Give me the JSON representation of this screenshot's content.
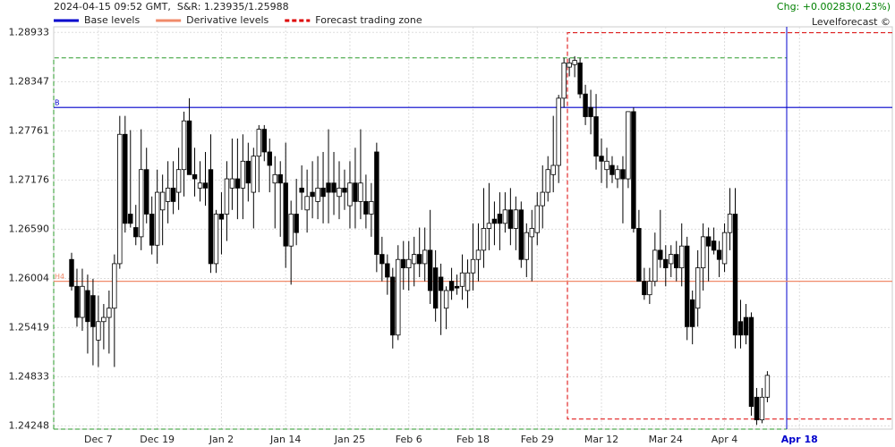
{
  "chart_data": {
    "type": "candlestick",
    "title": "2024-04-15 09:52 GMT,  S&R: 1.23935/1.25988",
    "change": "Chg: +0.00283(0.23%)",
    "source": "Levelforecast ©",
    "legend": [
      {
        "name": "Base levels",
        "color": "#0000cc",
        "style": "solid"
      },
      {
        "name": "Derivative levels",
        "color": "#f08a6a",
        "style": "solid"
      },
      {
        "name": "Forecast trading zone",
        "color": "#dd0000",
        "style": "dashed"
      }
    ],
    "base_levels": [
      {
        "label": "B",
        "value": 1.2804
      }
    ],
    "derivative_levels": [
      {
        "label": "H4",
        "value": 1.2597
      }
    ],
    "forecast_zone": {
      "high": 1.2893,
      "low": 1.2433
    },
    "range_zone": {
      "high": 1.2863,
      "low": 1.2421
    },
    "ylim": [
      1.2421,
      1.29
    ],
    "yticks": [
      1.24248,
      1.24833,
      1.25419,
      1.26004,
      {
        "value": 1.2659,
        "label": "1.26590"
      },
      1.27176,
      1.27761,
      1.28347,
      1.28933
    ],
    "grid": true,
    "up_color": "#ffffff",
    "down_color": "#000000",
    "categories": [
      null,
      null,
      null,
      null,
      null,
      "Dec 7",
      null,
      null,
      null,
      null,
      null,
      null,
      null,
      null,
      null,
      null,
      "Dec 19",
      null,
      null,
      null,
      null,
      null,
      null,
      null,
      null,
      null,
      null,
      null,
      "Jan 2",
      null,
      null,
      null,
      null,
      null,
      null,
      null,
      null,
      null,
      null,
      null,
      "Jan 14",
      null,
      null,
      null,
      null,
      null,
      null,
      null,
      null,
      null,
      null,
      null,
      "Jan 25",
      null,
      null,
      null,
      null,
      null,
      null,
      null,
      null,
      null,
      null,
      "Feb 6",
      null,
      null,
      null,
      null,
      null,
      null,
      null,
      null,
      null,
      null,
      null,
      "Feb 18",
      null,
      null,
      null,
      null,
      null,
      null,
      null,
      null,
      null,
      null,
      null,
      "Feb 29",
      null,
      null,
      null,
      null,
      null,
      null,
      null,
      null,
      null,
      null,
      null,
      "Mar 12",
      null,
      null,
      null,
      null,
      null,
      null,
      null,
      null,
      null,
      null,
      null,
      "Mar 24",
      null,
      null,
      null,
      null,
      null,
      null,
      null,
      null,
      null,
      null,
      "Apr 4",
      null,
      null,
      null,
      null,
      null,
      null,
      null,
      null,
      null,
      null,
      null,
      null,
      null,
      "Apr 18"
    ],
    "open": [
      1.2623,
      1.2591,
      1.2554,
      1.2586,
      1.258,
      1.2527,
      1.2549,
      1.2554,
      1.2565,
      1.2618,
      1.2772,
      1.2677,
      1.2661,
      1.265,
      1.273,
      1.2677,
      1.264,
      1.2682,
      1.2692,
      1.2708,
      1.2703,
      1.273,
      1.2788,
      1.2724,
      1.2708,
      1.2714,
      1.273,
      1.2618,
      1.2677,
      1.2677,
      1.2708,
      1.2719,
      1.2708,
      1.274,
      1.2703,
      1.2746,
      1.2778,
      1.2751,
      1.2714,
      1.2724,
      1.2714,
      1.2639,
      1.2677,
      1.2708,
      1.2682,
      1.2703,
      1.2692,
      1.2708,
      1.2714,
      1.2714,
      1.2698,
      1.2708,
      1.2687,
      1.2714,
      1.2692,
      1.2692,
      1.2677,
      1.2751,
      1.2629,
      1.2618,
      1.2602,
      1.2533,
      1.2623,
      1.2613,
      1.2618,
      1.2629,
      1.2618,
      1.2634,
      1.2613,
      1.2602,
      1.2565,
      1.2597,
      1.2591,
      1.2591,
      1.2586,
      1.2607,
      1.2623,
      1.2634,
      1.266,
      1.2671,
      1.2677,
      1.2666,
      1.2682,
      1.266,
      1.2682,
      1.2623,
      1.265,
      1.2655,
      1.2687,
      1.2703,
      1.2724,
      1.2735,
      1.2815,
      1.2852,
      1.2855,
      1.2857,
      1.282,
      1.2804,
      1.2793,
      1.2746,
      1.273,
      1.2735,
      1.2719,
      1.273,
      1.2719,
      1.2799,
      1.266,
      1.2597,
      1.2581,
      1.2597,
      1.2634,
      1.2623,
      1.2618,
      1.2629,
      1.2613,
      1.2639,
      1.2575,
      1.2565,
      1.2613,
      1.265,
      1.2645,
      1.2634,
      1.2618,
      1.2655,
      1.2677,
      1.2549,
      1.2554,
      1.2554,
      1.2459,
      1.2432,
      1.2459,
      null,
      null,
      null,
      null,
      null,
      null
    ],
    "high": [
      1.2631,
      1.2612,
      1.2612,
      1.2605,
      1.26,
      1.258,
      1.257,
      1.2586,
      1.2629,
      1.2794,
      1.2794,
      1.2777,
      1.2688,
      1.2778,
      1.2756,
      1.2698,
      1.273,
      1.2724,
      1.274,
      1.274,
      1.2756,
      1.2799,
      1.2815,
      1.2756,
      1.274,
      1.2751,
      1.2772,
      1.2682,
      1.2703,
      1.274,
      1.2767,
      1.2767,
      1.2772,
      1.2762,
      1.2756,
      1.2783,
      1.2783,
      1.2767,
      1.2746,
      1.274,
      1.2762,
      1.2693,
      1.2719,
      1.2735,
      1.273,
      1.274,
      1.2746,
      1.2751,
      1.2778,
      1.2751,
      1.274,
      1.273,
      1.274,
      1.2756,
      1.2778,
      1.2724,
      1.2714,
      1.2762,
      1.265,
      1.2629,
      1.2613,
      1.264,
      1.2645,
      1.2645,
      1.265,
      1.2661,
      1.2661,
      1.2682,
      1.2634,
      1.2618,
      1.2591,
      1.2613,
      1.2605,
      1.2629,
      1.2623,
      1.2666,
      1.2666,
      1.2708,
      1.2714,
      1.2692,
      1.2703,
      1.2703,
      1.2708,
      1.2698,
      1.2692,
      1.2666,
      1.2682,
      1.2703,
      1.2735,
      1.2746,
      1.2794,
      1.2819,
      1.2863,
      1.2863,
      1.2865,
      1.2863,
      1.2831,
      1.2825,
      1.282,
      1.2767,
      1.2756,
      1.2746,
      1.2735,
      1.2746,
      1.2799,
      1.2804,
      1.2682,
      1.2613,
      1.2613,
      1.2655,
      1.2682,
      1.264,
      1.264,
      1.2645,
      1.2666,
      1.265,
      1.2586,
      1.2634,
      1.2666,
      1.2661,
      1.2661,
      1.2645,
      1.2666,
      1.2708,
      1.2708,
      1.2575,
      1.257,
      1.256,
      1.247,
      1.247,
      1.249,
      null,
      null,
      null,
      null,
      null,
      null
    ],
    "low": [
      1.2586,
      1.2543,
      1.2538,
      1.2511,
      1.2497,
      1.2495,
      1.2516,
      1.2511,
      1.2495,
      1.2612,
      1.2655,
      1.2661,
      1.264,
      1.2634,
      1.2666,
      1.2629,
      1.2618,
      1.264,
      1.2666,
      1.2677,
      1.2682,
      1.2698,
      1.2724,
      1.2698,
      1.2692,
      1.2687,
      1.2607,
      1.2607,
      1.2629,
      1.2645,
      1.2682,
      1.2671,
      1.2671,
      1.2692,
      1.266,
      1.2703,
      1.274,
      1.2703,
      1.266,
      1.265,
      1.2613,
      1.2593,
      1.264,
      1.2682,
      1.2655,
      1.2672,
      1.2671,
      1.2666,
      1.2666,
      1.2676,
      1.2671,
      1.2682,
      1.266,
      1.266,
      1.2671,
      1.266,
      1.265,
      1.2608,
      1.2597,
      1.2581,
      1.2517,
      1.2527,
      1.2587,
      1.2586,
      1.2591,
      1.2602,
      1.2597,
      1.257,
      1.2549,
      1.2533,
      1.254,
      1.2575,
      1.2581,
      1.2575,
      1.2565,
      1.2586,
      1.2597,
      1.2613,
      1.2634,
      1.264,
      1.2634,
      1.2655,
      1.264,
      1.2634,
      1.2613,
      1.2602,
      1.2597,
      1.264,
      1.266,
      1.2692,
      1.2703,
      1.2714,
      1.2804,
      1.2841,
      1.284,
      1.2815,
      1.2783,
      1.2772,
      1.273,
      1.2714,
      1.2708,
      1.2714,
      1.2708,
      1.2666,
      1.2708,
      1.2655,
      1.2597,
      1.2575,
      1.257,
      1.2591,
      1.2613,
      1.2591,
      1.2602,
      1.2597,
      1.2591,
      1.2527,
      1.2522,
      1.2543,
      1.2586,
      1.2597,
      1.2629,
      1.2602,
      1.2608,
      1.2634,
      1.2517,
      1.2517,
      1.2522,
      1.2437,
      1.2426,
      1.2428,
      1.2453,
      null,
      null,
      null,
      null,
      null,
      null
    ],
    "close": [
      1.2591,
      1.2554,
      1.2591,
      1.2549,
      1.2543,
      1.2549,
      1.2554,
      1.2565,
      1.2618,
      1.2772,
      1.2666,
      1.2666,
      1.265,
      1.273,
      1.2677,
      1.264,
      1.2703,
      1.2703,
      1.2708,
      1.2692,
      1.273,
      1.2788,
      1.2724,
      1.2719,
      1.2714,
      1.2708,
      1.2618,
      1.2677,
      1.2671,
      1.2719,
      1.2719,
      1.2708,
      1.274,
      1.2714,
      1.2746,
      1.2778,
      1.2751,
      1.2735,
      1.2724,
      1.2714,
      1.2639,
      1.2677,
      1.2655,
      1.2703,
      1.2698,
      1.2698,
      1.2708,
      1.2698,
      1.2703,
      1.2703,
      1.2708,
      1.2703,
      1.2714,
      1.2692,
      1.2714,
      1.2677,
      1.2692,
      1.2629,
      1.2618,
      1.2602,
      1.2533,
      1.2623,
      1.2613,
      1.2623,
      1.2629,
      1.2618,
      1.2634,
      1.2586,
      1.2565,
      1.2586,
      1.2586,
      1.2586,
      1.2589,
      1.2607,
      1.2607,
      1.2623,
      1.2634,
      1.266,
      1.2666,
      1.2666,
      1.2666,
      1.2682,
      1.266,
      1.2682,
      1.2623,
      1.2655,
      1.266,
      1.2687,
      1.2703,
      1.273,
      1.2735,
      1.2815,
      1.2857,
      1.2857,
      1.286,
      1.282,
      1.2793,
      1.2793,
      1.2746,
      1.274,
      1.274,
      1.2724,
      1.273,
      1.2719,
      1.2799,
      1.266,
      1.2597,
      1.2581,
      1.2597,
      1.2634,
      1.2623,
      1.2613,
      1.2629,
      1.2613,
      1.2639,
      1.2543,
      1.2543,
      1.2613,
      1.265,
      1.2639,
      1.2634,
      1.2623,
      1.2655,
      1.2677,
      1.2533,
      1.2533,
      1.2533,
      1.2448,
      1.2432,
      1.2459,
      1.2485,
      null,
      null,
      null,
      null,
      null,
      null
    ]
  }
}
